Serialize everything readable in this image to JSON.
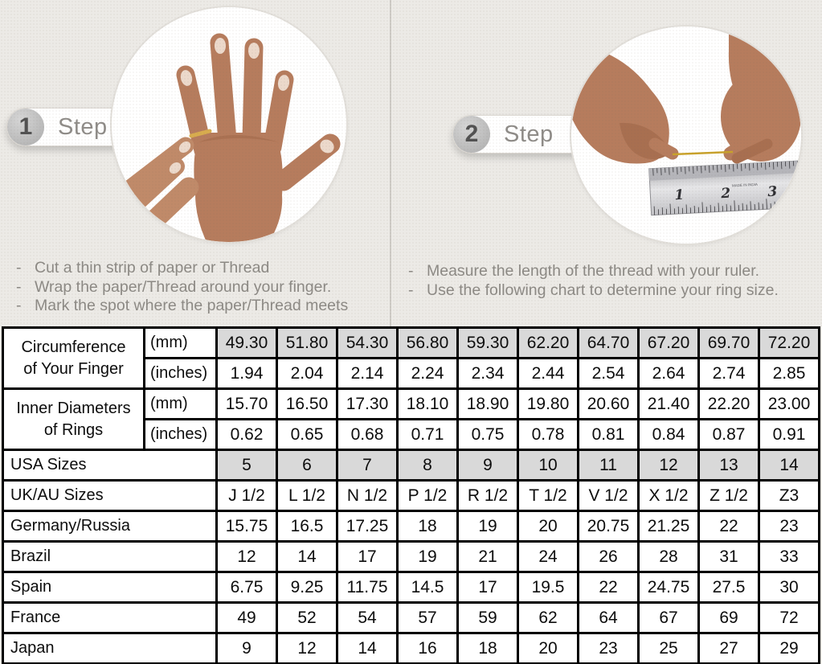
{
  "page": {
    "background_color": "#ECEAE6",
    "divider_color": "#CFCCC7",
    "shaded_cell_color": "#D9D9D9",
    "table_border_color": "#000000"
  },
  "steps": [
    {
      "number": "1",
      "label": "Step",
      "photo": "hand-with-gold-ring-photo",
      "instructions": [
        "Cut a thin strip of paper or Thread",
        "Wrap the paper/Thread around your finger.",
        "Mark the spot where the paper/Thread meets"
      ]
    },
    {
      "number": "2",
      "label": "Step",
      "photo": "hands-measuring-thread-on-ruler-photo",
      "instructions": [
        "Measure the length of the thread with your ruler.",
        "Use the following chart to determine your ring size."
      ]
    }
  ],
  "ruler": {
    "numbers": [
      "1",
      "2",
      "3"
    ],
    "small_text": "MADE IN INDIA"
  },
  "chart_data": {
    "type": "table",
    "rows": [
      {
        "label": "Circumference of Your Finger",
        "label_rowspan": 2,
        "unit": "(mm)",
        "shaded": true,
        "values": [
          "49.30",
          "51.80",
          "54.30",
          "56.80",
          "59.30",
          "62.20",
          "64.70",
          "67.20",
          "69.70",
          "72.20"
        ]
      },
      {
        "unit": "(inches)",
        "shaded": false,
        "values": [
          "1.94",
          "2.04",
          "2.14",
          "2.24",
          "2.34",
          "2.44",
          "2.54",
          "2.64",
          "2.74",
          "2.85"
        ]
      },
      {
        "label": "Inner Diameters of Rings",
        "label_rowspan": 2,
        "unit": "(mm)",
        "shaded": false,
        "values": [
          "15.70",
          "16.50",
          "17.30",
          "18.10",
          "18.90",
          "19.80",
          "20.60",
          "21.40",
          "22.20",
          "23.00"
        ]
      },
      {
        "unit": "(inches)",
        "shaded": false,
        "values": [
          "0.62",
          "0.65",
          "0.68",
          "0.71",
          "0.75",
          "0.78",
          "0.81",
          "0.84",
          "0.87",
          "0.91"
        ]
      },
      {
        "label": "USA Sizes",
        "label_colspan": 2,
        "shaded": true,
        "values": [
          "5",
          "6",
          "7",
          "8",
          "9",
          "10",
          "11",
          "12",
          "13",
          "14"
        ]
      },
      {
        "label": "UK/AU Sizes",
        "label_colspan": 2,
        "shaded": false,
        "values": [
          "J 1/2",
          "L 1/2",
          "N 1/2",
          "P 1/2",
          "R 1/2",
          "T 1/2",
          "V 1/2",
          "X 1/2",
          "Z 1/2",
          "Z3"
        ]
      },
      {
        "label": "Germany/Russia",
        "label_colspan": 2,
        "shaded": false,
        "values": [
          "15.75",
          "16.5",
          "17.25",
          "18",
          "19",
          "20",
          "20.75",
          "21.25",
          "22",
          "23"
        ]
      },
      {
        "label": "Brazil",
        "label_colspan": 2,
        "shaded": false,
        "values": [
          "12",
          "14",
          "17",
          "19",
          "21",
          "24",
          "26",
          "28",
          "31",
          "33"
        ]
      },
      {
        "label": "Spain",
        "label_colspan": 2,
        "shaded": false,
        "values": [
          "6.75",
          "9.25",
          "11.75",
          "14.5",
          "17",
          "19.5",
          "22",
          "24.75",
          "27.5",
          "30"
        ]
      },
      {
        "label": "France",
        "label_colspan": 2,
        "shaded": false,
        "values": [
          "49",
          "52",
          "54",
          "57",
          "59",
          "62",
          "64",
          "67",
          "69",
          "72"
        ]
      },
      {
        "label": "Japan",
        "label_colspan": 2,
        "shaded": false,
        "values": [
          "9",
          "12",
          "14",
          "16",
          "18",
          "20",
          "23",
          "25",
          "27",
          "29"
        ]
      }
    ]
  }
}
